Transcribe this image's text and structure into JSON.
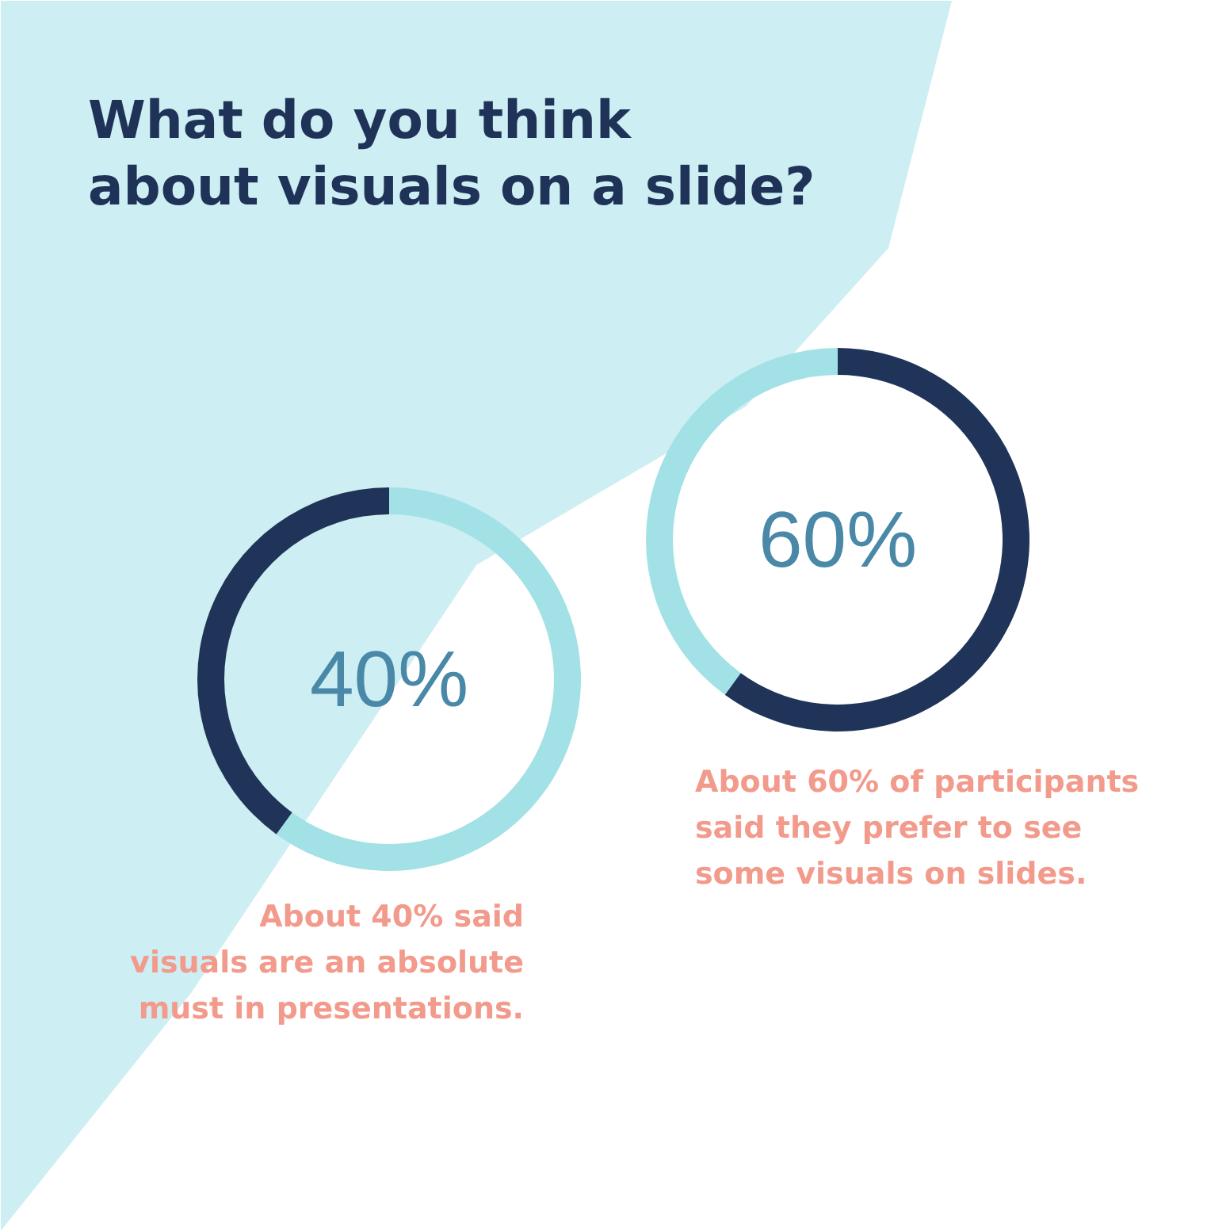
{
  "chart_data": [
    {
      "type": "donut",
      "title": "What do you think\nabout visuals on a slide?",
      "categories": [
        null,
        null
      ],
      "values": [
        40,
        60
      ],
      "colors": [
        "#203459",
        "#a2e1e5"
      ],
      "annotations": [
        "40%",
        "About 40% said\nvisuals are an absolute\nmust in presentations."
      ]
    },
    {
      "type": "donut",
      "categories": [
        null,
        null
      ],
      "values": [
        40,
        60
      ],
      "colors": [
        "#a2e1e5",
        "#203459"
      ],
      "annotations": [
        "60%",
        "About 60% of participants\nsaid they prefer to see\nsome visuals on slides."
      ]
    }
  ]
}
